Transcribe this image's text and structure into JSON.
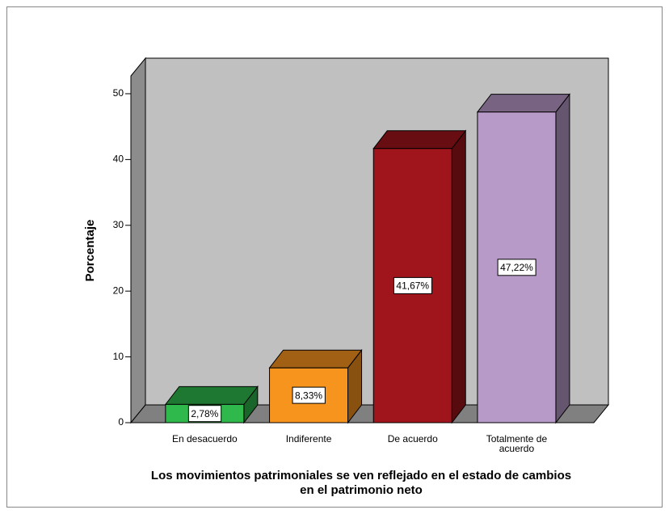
{
  "chart_data": {
    "type": "bar3d",
    "x_label": "Los movimientos patrimoniales se ven reflejado en el estado de cambios en el patrimonio neto",
    "y_label": "Porcentaje",
    "categories": [
      "En desacuerdo",
      "Indiferente",
      "De acuerdo",
      "Totalmente de acuerdo"
    ],
    "values": [
      2.78,
      8.33,
      41.67,
      47.22
    ],
    "value_labels": [
      "2,78%",
      "8,33%",
      "41,67%",
      "47,22%"
    ],
    "colors": [
      "#2fb84b",
      "#f7941d",
      "#a0141c",
      "#b89ac8"
    ],
    "ylim": [
      0,
      52.7
    ],
    "yticks": [
      0,
      10,
      20,
      30,
      40,
      50
    ]
  }
}
